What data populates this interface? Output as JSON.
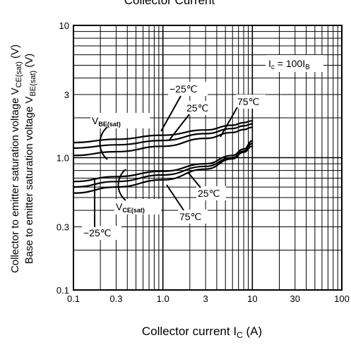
{
  "chart_data": {
    "type": "line",
    "title": "Collector Current",
    "xlabel": "Collector current",
    "xlabel_sym": "I",
    "xlabel_sub": "C",
    "xlabel_unit": " (A)",
    "ylabel_ce": "Collector to emitter saturation voltage",
    "ylabel_ce_sym": "V",
    "ylabel_ce_sub": "CE(sat)",
    "ylabel_ce_unit": " (V)",
    "ylabel_be": "Base to emitter saturation voltage",
    "ylabel_be_sym": "V",
    "ylabel_be_sub": "BE(sat)",
    "ylabel_be_unit": " (V)",
    "x_scale": "log",
    "y_scale": "log",
    "xlim": [
      0.1,
      100
    ],
    "ylim": [
      0.1,
      10
    ],
    "x_ticks": [
      "0.1",
      "0.3",
      "1.0",
      "3",
      "10",
      "30",
      "100"
    ],
    "y_ticks": [
      "0.1",
      "0.3",
      "1.0",
      "3",
      "10"
    ],
    "grid": true,
    "condition": "I C = 100I B",
    "condition_main": "I",
    "condition_sub1": "c",
    "condition_mid": " = 100I",
    "condition_sub2": "B",
    "series": [
      {
        "group": "VBE(sat)",
        "temp": "-25℃",
        "x": [
          0.1,
          0.3,
          1.0,
          3,
          6,
          8,
          10
        ],
        "y": [
          1.3,
          1.38,
          1.48,
          1.62,
          1.76,
          1.84,
          1.9
        ]
      },
      {
        "group": "VBE(sat)",
        "temp": "25℃",
        "x": [
          0.1,
          0.3,
          1.0,
          3,
          6,
          8,
          10
        ],
        "y": [
          1.18,
          1.25,
          1.35,
          1.52,
          1.66,
          1.74,
          1.8
        ]
      },
      {
        "group": "VBE(sat)",
        "temp": "75℃",
        "x": [
          0.1,
          0.3,
          1.0,
          3,
          6,
          8,
          10
        ],
        "y": [
          1.04,
          1.11,
          1.22,
          1.4,
          1.55,
          1.63,
          1.7
        ]
      },
      {
        "group": "VCE(sat)",
        "temp": "-25℃",
        "x": [
          0.1,
          0.3,
          1.0,
          3,
          6,
          8,
          10
        ],
        "y": [
          0.54,
          0.6,
          0.68,
          0.82,
          0.98,
          1.1,
          1.22
        ]
      },
      {
        "group": "VCE(sat)",
        "temp": "25℃",
        "x": [
          0.1,
          0.3,
          1.0,
          3,
          6,
          8,
          10
        ],
        "y": [
          0.6,
          0.66,
          0.74,
          0.86,
          1.0,
          1.12,
          1.28
        ]
      },
      {
        "group": "VCE(sat)",
        "temp": "75℃",
        "x": [
          0.1,
          0.3,
          1.0,
          3,
          6,
          8,
          10
        ],
        "y": [
          0.66,
          0.72,
          0.79,
          0.9,
          1.04,
          1.16,
          1.34
        ]
      }
    ],
    "labels": {
      "vbe_main": "V",
      "vbe_sub": "BE(sat)",
      "vce_main": "V",
      "vce_sub": "CE(sat)",
      "t_m25_top": "−25℃",
      "t_25_top": "25℃",
      "t_75_top": "75℃",
      "t_25_bot": "25℃",
      "t_75_bot": "75℃",
      "t_m25_bot": "−25℃"
    }
  }
}
